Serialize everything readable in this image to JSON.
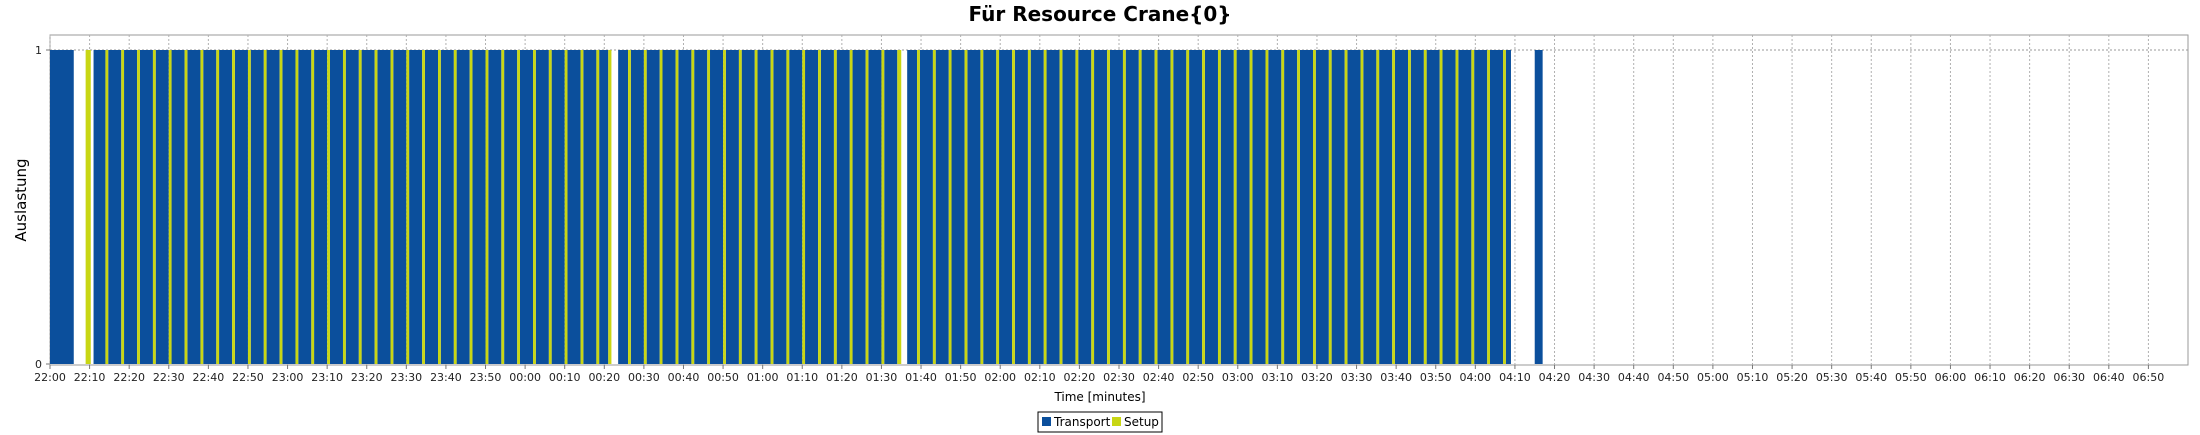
{
  "chart_data": {
    "type": "bar",
    "title": "Für Resource Crane{0}",
    "xlabel": "Time [minutes]",
    "ylabel": "Auslastung",
    "y_ticks": [
      "0",
      "1"
    ],
    "ylim": [
      0,
      1.05
    ],
    "x_ticks": [
      "22:00",
      "22:10",
      "22:20",
      "22:30",
      "22:40",
      "22:50",
      "23:00",
      "23:10",
      "23:20",
      "23:30",
      "23:40",
      "23:50",
      "00:00",
      "00:10",
      "00:20",
      "00:30",
      "00:40",
      "00:50",
      "01:00",
      "01:10",
      "01:20",
      "01:30",
      "01:40",
      "01:50",
      "02:00",
      "02:10",
      "02:20",
      "02:30",
      "02:40",
      "02:50",
      "03:00",
      "03:10",
      "03:20",
      "03:30",
      "03:40",
      "03:50",
      "04:00",
      "04:10",
      "04:20",
      "04:30",
      "04:40",
      "04:50",
      "05:00",
      "05:10",
      "05:20",
      "05:30",
      "05:40",
      "05:50",
      "06:00",
      "06:10",
      "06:20",
      "06:30",
      "06:40",
      "06:50"
    ],
    "x_range_minutes": [
      0,
      540
    ],
    "grid": true,
    "legend": "bottom-center",
    "series": [
      {
        "name": "Transport",
        "color": "#0b4f9c",
        "value": 1,
        "segments": [
          [
            0,
            6
          ],
          [
            11,
            14
          ],
          [
            14.7,
            18
          ],
          [
            18.7,
            22
          ],
          [
            22.7,
            26
          ],
          [
            26.7,
            30
          ],
          [
            30.7,
            34
          ],
          [
            34.7,
            38
          ],
          [
            38.7,
            42
          ],
          [
            42.7,
            46
          ],
          [
            46.7,
            50
          ],
          [
            50.7,
            54
          ],
          [
            54.7,
            58
          ],
          [
            58.7,
            62
          ],
          [
            62.7,
            66
          ],
          [
            66.7,
            70
          ],
          [
            70.7,
            74
          ],
          [
            74.7,
            78
          ],
          [
            78.7,
            82
          ],
          [
            82.7,
            86
          ],
          [
            86.7,
            90
          ],
          [
            90.7,
            94
          ],
          [
            94.7,
            98
          ],
          [
            98.7,
            102
          ],
          [
            102.7,
            106
          ],
          [
            106.7,
            110
          ],
          [
            110.7,
            114
          ],
          [
            114.7,
            118
          ],
          [
            118.7,
            122
          ],
          [
            122.7,
            126
          ],
          [
            126.7,
            130
          ],
          [
            130.7,
            134
          ],
          [
            134.7,
            138
          ],
          [
            138.7,
            141
          ],
          [
            143.5,
            146
          ],
          [
            146.7,
            150
          ],
          [
            150.7,
            154
          ],
          [
            154.7,
            158
          ],
          [
            158.7,
            162
          ],
          [
            162.7,
            166
          ],
          [
            166.7,
            170
          ],
          [
            170.7,
            174
          ],
          [
            174.7,
            178
          ],
          [
            178.7,
            182
          ],
          [
            182.7,
            186
          ],
          [
            186.7,
            190
          ],
          [
            190.7,
            194
          ],
          [
            194.7,
            198
          ],
          [
            198.7,
            202
          ],
          [
            202.7,
            206
          ],
          [
            206.7,
            210
          ],
          [
            210.7,
            214
          ],
          [
            216.5,
            219
          ],
          [
            219.7,
            223
          ],
          [
            223.7,
            227
          ],
          [
            227.7,
            231
          ],
          [
            231.7,
            235
          ],
          [
            235.7,
            239
          ],
          [
            239.7,
            243
          ],
          [
            243.7,
            247
          ],
          [
            247.7,
            251
          ],
          [
            251.7,
            255
          ],
          [
            255.7,
            259
          ],
          [
            259.7,
            263
          ],
          [
            263.7,
            267
          ],
          [
            267.7,
            271
          ],
          [
            271.7,
            275
          ],
          [
            275.7,
            279
          ],
          [
            279.7,
            283
          ],
          [
            283.7,
            287
          ],
          [
            287.7,
            291
          ],
          [
            291.7,
            295
          ],
          [
            295.7,
            299
          ],
          [
            299.7,
            303
          ],
          [
            303.7,
            307
          ],
          [
            307.7,
            311
          ],
          [
            311.7,
            315
          ],
          [
            315.7,
            319
          ],
          [
            319.7,
            323
          ],
          [
            323.7,
            327
          ],
          [
            327.7,
            331
          ],
          [
            331.7,
            335
          ],
          [
            335.7,
            339
          ],
          [
            339.7,
            343
          ],
          [
            343.7,
            347
          ],
          [
            347.7,
            351
          ],
          [
            351.7,
            355
          ],
          [
            355.7,
            359
          ],
          [
            359.7,
            363
          ],
          [
            363.7,
            367
          ],
          [
            367.7,
            369
          ],
          [
            375,
            377
          ]
        ]
      },
      {
        "name": "Setup",
        "color": "#c8d614",
        "value": 1,
        "segments": [
          [
            9,
            10.3
          ],
          [
            14,
            14.7
          ],
          [
            18,
            18.7
          ],
          [
            22,
            22.7
          ],
          [
            26,
            26.7
          ],
          [
            30,
            30.7
          ],
          [
            34,
            34.7
          ],
          [
            38,
            38.7
          ],
          [
            42,
            42.7
          ],
          [
            46,
            46.7
          ],
          [
            50,
            50.7
          ],
          [
            54,
            54.7
          ],
          [
            58,
            58.7
          ],
          [
            62,
            62.7
          ],
          [
            66,
            66.7
          ],
          [
            70,
            70.7
          ],
          [
            74,
            74.7
          ],
          [
            78,
            78.7
          ],
          [
            82,
            82.7
          ],
          [
            86,
            86.7
          ],
          [
            90,
            90.7
          ],
          [
            94,
            94.7
          ],
          [
            98,
            98.7
          ],
          [
            102,
            102.7
          ],
          [
            106,
            106.7
          ],
          [
            110,
            110.7
          ],
          [
            114,
            114.7
          ],
          [
            118,
            118.7
          ],
          [
            122,
            122.7
          ],
          [
            126,
            126.7
          ],
          [
            130,
            130.7
          ],
          [
            134,
            134.7
          ],
          [
            138,
            138.7
          ],
          [
            141,
            141.8
          ],
          [
            146,
            146.7
          ],
          [
            150,
            150.7
          ],
          [
            154,
            154.7
          ],
          [
            158,
            158.7
          ],
          [
            162,
            162.7
          ],
          [
            166,
            166.7
          ],
          [
            170,
            170.7
          ],
          [
            174,
            174.7
          ],
          [
            178,
            178.7
          ],
          [
            182,
            182.7
          ],
          [
            186,
            186.7
          ],
          [
            190,
            190.7
          ],
          [
            194,
            194.7
          ],
          [
            198,
            198.7
          ],
          [
            202,
            202.7
          ],
          [
            206,
            206.7
          ],
          [
            210,
            210.7
          ],
          [
            214,
            215
          ],
          [
            219,
            219.7
          ],
          [
            223,
            223.7
          ],
          [
            227,
            227.7
          ],
          [
            231,
            231.7
          ],
          [
            235,
            235.7
          ],
          [
            239,
            239.7
          ],
          [
            243,
            243.7
          ],
          [
            247,
            247.7
          ],
          [
            251,
            251.7
          ],
          [
            255,
            255.7
          ],
          [
            259,
            259.7
          ],
          [
            263,
            263.7
          ],
          [
            267,
            267.7
          ],
          [
            271,
            271.7
          ],
          [
            275,
            275.7
          ],
          [
            279,
            279.7
          ],
          [
            283,
            283.7
          ],
          [
            287,
            287.7
          ],
          [
            291,
            291.7
          ],
          [
            295,
            295.7
          ],
          [
            299,
            299.7
          ],
          [
            303,
            303.7
          ],
          [
            307,
            307.7
          ],
          [
            311,
            311.7
          ],
          [
            315,
            315.7
          ],
          [
            319,
            319.7
          ],
          [
            323,
            323.7
          ],
          [
            327,
            327.7
          ],
          [
            331,
            331.7
          ],
          [
            335,
            335.7
          ],
          [
            339,
            339.7
          ],
          [
            343,
            343.7
          ],
          [
            347,
            347.7
          ],
          [
            351,
            351.7
          ],
          [
            355,
            355.7
          ],
          [
            359,
            359.7
          ],
          [
            363,
            363.7
          ],
          [
            367,
            367.7
          ]
        ]
      }
    ]
  }
}
